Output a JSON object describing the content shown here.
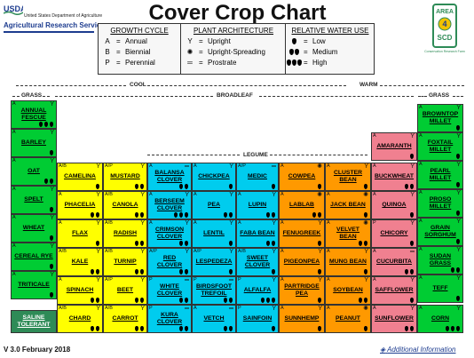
{
  "header": {
    "usda_logo": "USDA",
    "usda_name": "United States Department of Agriculture",
    "ars_name": "Agricultural Research Service",
    "title": "Cover Crop Chart",
    "area_logo_top": "AREA",
    "area_logo_num": "4",
    "area_logo_bottom": "SCD",
    "area_logo_caption": "Conservation Research Farm"
  },
  "legend": {
    "growth_cycle": {
      "title": "GROWTH CYCLE",
      "rows": [
        {
          "symbol": "A",
          "label": "Annual"
        },
        {
          "symbol": "B",
          "label": "Biennial"
        },
        {
          "symbol": "P",
          "label": "Perennial"
        }
      ]
    },
    "plant_architecture": {
      "title": "PLANT ARCHITECTURE",
      "rows": [
        {
          "symbol": "Υ",
          "label": "Upright"
        },
        {
          "symbol": "✺",
          "label": "Upright-Spreading"
        },
        {
          "symbol": "═",
          "label": "Prostrate"
        }
      ]
    },
    "water_use": {
      "title": "RELATIVE WATER USE",
      "rows": [
        {
          "drops": 1,
          "label": "Low"
        },
        {
          "drops": 2,
          "label": "Medium"
        },
        {
          "drops": 3,
          "label": "High"
        }
      ]
    }
  },
  "sections": {
    "cool": "COOL",
    "warm": "WARM",
    "grass_left": "GRASS",
    "broadleaf": "BROADLEAF",
    "grass_right": "GRASS",
    "legume": "LEGUME"
  },
  "colors": {
    "green": "#00cc33",
    "yellow": "#ffff00",
    "cyan": "#00ccee",
    "orange": "#ff9900",
    "pink": "#f08090",
    "dark_green": "#2e8b57"
  },
  "crops": [
    {
      "name": "ANNUAL FESCUE",
      "cycle": "A",
      "arch": "Υ",
      "water": 3,
      "color": "green"
    },
    {
      "name": "BARLEY",
      "cycle": "A",
      "arch": "Υ",
      "water": 1,
      "color": "green"
    },
    {
      "name": "OAT",
      "cycle": "A",
      "arch": "Υ",
      "water": 2,
      "color": "green"
    },
    {
      "name": "SPELT",
      "cycle": "A",
      "arch": "Υ",
      "water": 1,
      "color": "green"
    },
    {
      "name": "WHEAT",
      "cycle": "A",
      "arch": "Υ",
      "water": 1,
      "color": "green"
    },
    {
      "name": "CEREAL RYE",
      "cycle": "A",
      "arch": "Υ",
      "water": 1,
      "color": "green"
    },
    {
      "name": "TRITICALE",
      "cycle": "A",
      "arch": "Υ",
      "water": 1,
      "color": "green"
    },
    {
      "name": "SALINE TOLERANT",
      "cycle": "",
      "arch": "",
      "water": 0,
      "color": "dark_green"
    },
    {
      "name": "CAMELINA",
      "cycle": "A/B",
      "arch": "Υ",
      "water": 1,
      "color": "yellow"
    },
    {
      "name": "MUSTARD",
      "cycle": "A/P",
      "arch": "Υ",
      "water": 2,
      "color": "yellow"
    },
    {
      "name": "PHACELIA",
      "cycle": "A",
      "arch": "Υ",
      "water": 2,
      "color": "yellow"
    },
    {
      "name": "CANOLA",
      "cycle": "A/B",
      "arch": "Υ",
      "water": 2,
      "color": "yellow"
    },
    {
      "name": "FLAX",
      "cycle": "A",
      "arch": "Υ",
      "water": 1,
      "color": "yellow"
    },
    {
      "name": "RADISH",
      "cycle": "A/B",
      "arch": "Υ",
      "water": 2,
      "color": "yellow"
    },
    {
      "name": "KALE",
      "cycle": "A/B",
      "arch": "Υ",
      "water": 2,
      "color": "yellow"
    },
    {
      "name": "TURNIP",
      "cycle": "A/B",
      "arch": "Υ",
      "water": 2,
      "color": "yellow"
    },
    {
      "name": "SPINACH",
      "cycle": "A",
      "arch": "Υ",
      "water": 2,
      "color": "yellow"
    },
    {
      "name": "BEET",
      "cycle": "A/P",
      "arch": "Υ",
      "water": 2,
      "color": "yellow"
    },
    {
      "name": "CHARD",
      "cycle": "A/B",
      "arch": "Υ",
      "water": 2,
      "color": "yellow"
    },
    {
      "name": "CARROT",
      "cycle": "A/B",
      "arch": "Υ",
      "water": 2,
      "color": "yellow"
    },
    {
      "name": "BALANSA CLOVER",
      "cycle": "A",
      "arch": "═",
      "water": 2,
      "color": "cyan"
    },
    {
      "name": "CHICKPEA",
      "cycle": "A",
      "arch": "Υ",
      "water": 1,
      "color": "cyan"
    },
    {
      "name": "MEDIC",
      "cycle": "A/P",
      "arch": "═",
      "water": 1,
      "color": "cyan"
    },
    {
      "name": "BERSEEM CLOVER",
      "cycle": "A",
      "arch": "Υ",
      "water": 3,
      "color": "cyan"
    },
    {
      "name": "PEA",
      "cycle": "A",
      "arch": "Υ",
      "water": 2,
      "color": "cyan"
    },
    {
      "name": "LUPIN",
      "cycle": "A",
      "arch": "Υ",
      "water": 2,
      "color": "cyan"
    },
    {
      "name": "CRIMSON CLOVER",
      "cycle": "A",
      "arch": "Υ",
      "water": 2,
      "color": "cyan"
    },
    {
      "name": "LENTIL",
      "cycle": "A",
      "arch": "Υ",
      "water": 1,
      "color": "cyan"
    },
    {
      "name": "FABA BEAN",
      "cycle": "A",
      "arch": "Υ",
      "water": 2,
      "color": "cyan"
    },
    {
      "name": "RED CLOVER",
      "cycle": "A/P",
      "arch": "Υ",
      "water": 2,
      "color": "cyan"
    },
    {
      "name": "LESPEDEZA",
      "cycle": "A/P",
      "arch": "Υ",
      "water": 1,
      "color": "cyan"
    },
    {
      "name": "SWEET CLOVER",
      "cycle": "A/B",
      "arch": "Υ",
      "water": 1,
      "color": "cyan"
    },
    {
      "name": "WHITE CLOVER",
      "cycle": "P",
      "arch": "═",
      "water": 2,
      "color": "cyan"
    },
    {
      "name": "BIRDSFOOT TREFOIL",
      "cycle": "P",
      "arch": "═",
      "water": 2,
      "color": "cyan"
    },
    {
      "name": "ALFALFA",
      "cycle": "P",
      "arch": "Υ",
      "water": 3,
      "color": "cyan"
    },
    {
      "name": "KURA CLOVER",
      "cycle": "P",
      "arch": "═",
      "water": 2,
      "color": "cyan"
    },
    {
      "name": "VETCH",
      "cycle": "A",
      "arch": "═",
      "water": 2,
      "color": "cyan"
    },
    {
      "name": "SAINFOIN",
      "cycle": "P",
      "arch": "Υ",
      "water": 1,
      "color": "cyan"
    },
    {
      "name": "COWPEA",
      "cycle": "A",
      "arch": "✺",
      "water": 1,
      "color": "orange"
    },
    {
      "name": "CLUSTER BEAN",
      "cycle": "A",
      "arch": "Υ",
      "water": 1,
      "color": "orange"
    },
    {
      "name": "LABLAB",
      "cycle": "A",
      "arch": "✺",
      "water": 2,
      "color": "orange"
    },
    {
      "name": "JACK BEAN",
      "cycle": "A",
      "arch": "✺",
      "water": 1,
      "color": "orange"
    },
    {
      "name": "FENUGREEK",
      "cycle": "A",
      "arch": "Υ",
      "water": 1,
      "color": "orange"
    },
    {
      "name": "VELVET BEAN",
      "cycle": "A",
      "arch": "✺",
      "water": 2,
      "color": "orange"
    },
    {
      "name": "PIGEONPEA",
      "cycle": "A",
      "arch": "Υ",
      "water": 1,
      "color": "orange"
    },
    {
      "name": "MUNG BEAN",
      "cycle": "A",
      "arch": "Υ",
      "water": 1,
      "color": "orange"
    },
    {
      "name": "PARTRIDGE PEA",
      "cycle": "A",
      "arch": "Υ",
      "water": 1,
      "color": "orange"
    },
    {
      "name": "SOYBEAN",
      "cycle": "A",
      "arch": "Υ",
      "water": 2,
      "color": "orange"
    },
    {
      "name": "SUNNHEMP",
      "cycle": "A",
      "arch": "Υ",
      "water": 1,
      "color": "orange"
    },
    {
      "name": "PEANUT",
      "cycle": "A",
      "arch": "✺",
      "water": 1,
      "color": "orange"
    },
    {
      "name": "AMARANTH",
      "cycle": "A",
      "arch": "Υ",
      "water": 1,
      "color": "pink"
    },
    {
      "name": "BUCKWHEAT",
      "cycle": "A",
      "arch": "Υ",
      "water": 2,
      "color": "pink"
    },
    {
      "name": "QUINOA",
      "cycle": "A",
      "arch": "Υ",
      "water": 1,
      "color": "pink"
    },
    {
      "name": "CHICORY",
      "cycle": "P",
      "arch": "Υ",
      "water": 1,
      "color": "pink"
    },
    {
      "name": "CUCURBITA",
      "cycle": "A",
      "arch": "═",
      "water": 2,
      "color": "pink"
    },
    {
      "name": "SAFFLOWER",
      "cycle": "A",
      "arch": "Υ",
      "water": 1,
      "color": "pink"
    },
    {
      "name": "SUNFLOWER",
      "cycle": "A",
      "arch": "Υ",
      "water": 2,
      "color": "pink"
    },
    {
      "name": "BROWNTOP MILLET",
      "cycle": "A",
      "arch": "Υ",
      "water": 1,
      "color": "green"
    },
    {
      "name": "FOXTAIL MILLET",
      "cycle": "A",
      "arch": "Υ",
      "water": 1,
      "color": "green"
    },
    {
      "name": "PEARL MILLET",
      "cycle": "A",
      "arch": "Υ",
      "water": 1,
      "color": "green"
    },
    {
      "name": "PROSO MILLET",
      "cycle": "A",
      "arch": "Υ",
      "water": 1,
      "color": "green"
    },
    {
      "name": "GRAIN SORGHUM",
      "cycle": "A",
      "arch": "Υ",
      "water": 1,
      "color": "green"
    },
    {
      "name": "SUDAN GRASS",
      "cycle": "A",
      "arch": "Υ",
      "water": 2,
      "color": "green"
    },
    {
      "name": "TEFF",
      "cycle": "A",
      "arch": "Υ",
      "water": 1,
      "color": "green"
    },
    {
      "name": "CORN",
      "cycle": "A",
      "arch": "Υ",
      "water": 3,
      "color": "green"
    }
  ],
  "footer": {
    "version": "V 3.0 February 2018",
    "additional_info": "Additional Information",
    "info_icon": "diamond-arrow-icon"
  }
}
